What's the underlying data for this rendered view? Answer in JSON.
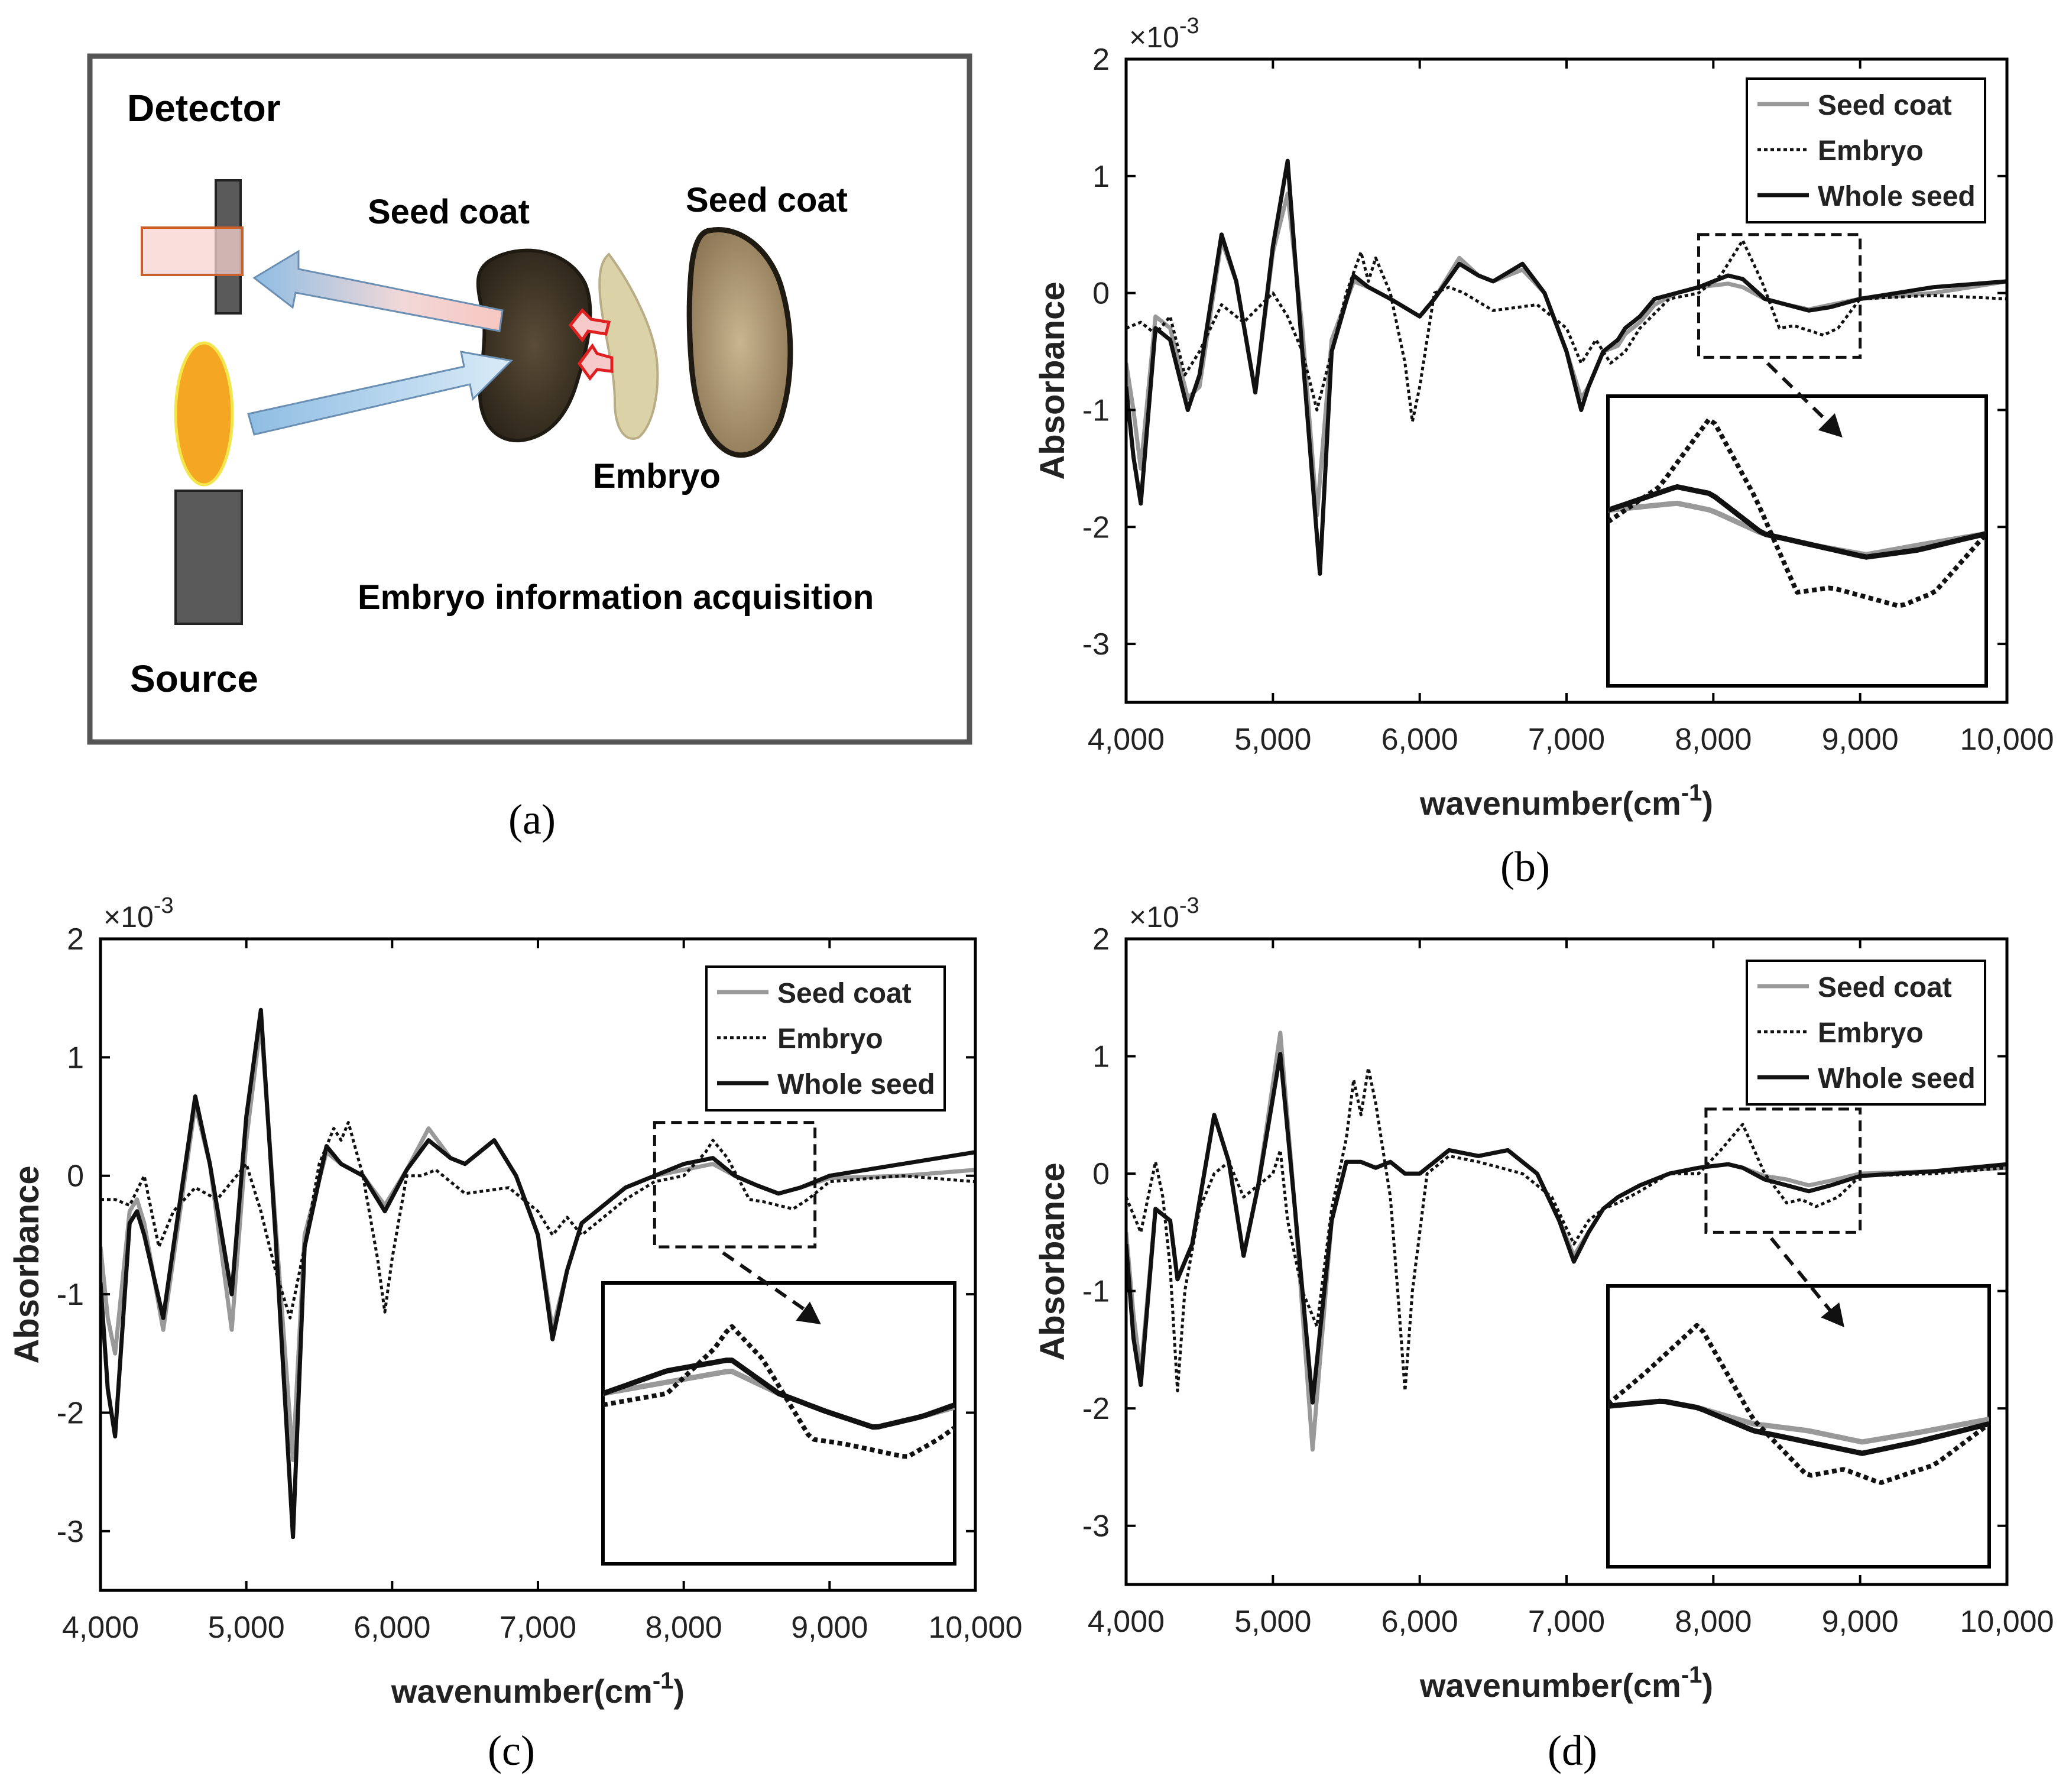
{
  "panel_a": {
    "caption": "(a)",
    "detector_label": "Detector",
    "source_label": "Source",
    "seed_coat_label_left": "Seed coat",
    "seed_coat_label_right": "Seed coat",
    "embryo_label": "Embryo",
    "acquisition_label": "Embryo information acquisition",
    "colors": {
      "frame": "#555555",
      "dark_seed": "#3d3426",
      "light_seed": "#b9a27e",
      "embryo": "#dcd2a8",
      "flame": "#f5a623",
      "lamp": "#5a5a5a",
      "arrow_blue": "#9cc6e6",
      "arrow_pink": "#f4c5c0",
      "red_arrow": "#e02020",
      "detector_box": "#f8d3cf"
    }
  },
  "style": {
    "seed_coat_color": "#999999",
    "embryo_color": "#111111",
    "whole_seed_color": "#111111",
    "axis_color": "#000000"
  },
  "chart_data": [
    {
      "id": "b",
      "caption": "(b)",
      "type": "line",
      "xlabel": "wavenumber(cm",
      "xlabel_sup": "-1",
      "xlabel_tail": ")",
      "ylabel": "Absorbance",
      "y_multiplier": "×10",
      "y_multiplier_exp": "-3",
      "xlim": [
        4000,
        10000
      ],
      "ylim": [
        -3.5,
        2
      ],
      "xticks": [
        4000,
        5000,
        6000,
        7000,
        8000,
        9000,
        10000
      ],
      "xtick_labels": [
        "4,000",
        "5,000",
        "6,000",
        "7,000",
        "8,000",
        "9,000",
        "10,000"
      ],
      "yticks": [
        -3,
        -2,
        -1,
        0,
        1,
        2
      ],
      "ytick_labels": [
        "-3",
        "-2",
        "-1",
        "0",
        "1",
        "2"
      ],
      "zoom_box": {
        "x": [
          7900,
          9000
        ],
        "y": [
          -0.55,
          0.5
        ]
      },
      "inset_y": [
        -3.3,
        1.1
      ],
      "series": [
        {
          "name": "Seed coat",
          "style": "gray",
          "x": [
            4000,
            4050,
            4100,
            4200,
            4300,
            4420,
            4500,
            4650,
            4750,
            4880,
            5000,
            5100,
            5200,
            5300,
            5400,
            5550,
            5650,
            5800,
            6000,
            6100,
            6270,
            6400,
            6500,
            6700,
            6850,
            7000,
            7100,
            7150,
            7250,
            7350,
            7400,
            7500,
            7600,
            7750,
            7900,
            8100,
            8200,
            8350,
            8500,
            8650,
            8800,
            9000,
            9500,
            10000
          ],
          "y": [
            -0.6,
            -1.0,
            -1.5,
            -0.2,
            -0.3,
            -0.9,
            -0.8,
            0.45,
            0.1,
            -0.85,
            0.35,
            0.85,
            -0.3,
            -1.9,
            -0.4,
            0.1,
            0.05,
            -0.05,
            -0.2,
            -0.05,
            0.3,
            0.15,
            0.1,
            0.2,
            0.0,
            -0.5,
            -0.9,
            -0.8,
            -0.5,
            -0.45,
            -0.35,
            -0.25,
            -0.1,
            0.0,
            0.05,
            0.08,
            0.05,
            -0.05,
            -0.1,
            -0.14,
            -0.1,
            -0.05,
            0.0,
            0.1
          ]
        },
        {
          "name": "Embryo",
          "style": "dotted",
          "x": [
            4000,
            4100,
            4200,
            4300,
            4400,
            4500,
            4650,
            4800,
            5000,
            5100,
            5200,
            5300,
            5400,
            5500,
            5600,
            5650,
            5700,
            5800,
            5900,
            5950,
            6000,
            6100,
            6200,
            6300,
            6500,
            6800,
            7000,
            7100,
            7200,
            7300,
            7400,
            7500,
            7700,
            7900,
            8050,
            8200,
            8330,
            8450,
            8550,
            8650,
            8750,
            8850,
            9000,
            9500,
            10000
          ],
          "y": [
            -0.3,
            -0.25,
            -0.35,
            -0.2,
            -0.7,
            -0.5,
            -0.1,
            -0.25,
            0.0,
            -0.2,
            -0.5,
            -1.0,
            -0.5,
            0.0,
            0.35,
            0.1,
            0.3,
            0.0,
            -0.6,
            -1.1,
            -0.8,
            0.0,
            0.05,
            0.0,
            -0.15,
            -0.1,
            -0.3,
            -0.6,
            -0.4,
            -0.6,
            -0.5,
            -0.3,
            -0.05,
            0.0,
            0.15,
            0.45,
            0.1,
            -0.3,
            -0.28,
            -0.32,
            -0.36,
            -0.3,
            -0.05,
            -0.02,
            -0.05
          ]
        },
        {
          "name": "Whole seed",
          "style": "solid",
          "x": [
            4000,
            4050,
            4100,
            4200,
            4300,
            4420,
            4500,
            4650,
            4750,
            4880,
            5000,
            5100,
            5200,
            5320,
            5400,
            5550,
            5650,
            5800,
            6000,
            6100,
            6270,
            6400,
            6500,
            6700,
            6850,
            7000,
            7100,
            7150,
            7250,
            7350,
            7400,
            7500,
            7600,
            7750,
            7900,
            8100,
            8200,
            8350,
            8500,
            8650,
            8800,
            9000,
            9500,
            10000
          ],
          "y": [
            -0.8,
            -1.4,
            -1.8,
            -0.3,
            -0.4,
            -1.0,
            -0.7,
            0.5,
            0.1,
            -0.85,
            0.4,
            1.13,
            -0.5,
            -2.4,
            -0.5,
            0.15,
            0.05,
            -0.05,
            -0.2,
            -0.05,
            0.25,
            0.15,
            0.1,
            0.25,
            0.0,
            -0.5,
            -1.0,
            -0.8,
            -0.5,
            -0.4,
            -0.3,
            -0.2,
            -0.05,
            0.0,
            0.05,
            0.15,
            0.12,
            -0.05,
            -0.1,
            -0.15,
            -0.12,
            -0.05,
            0.05,
            0.1
          ]
        }
      ]
    },
    {
      "id": "c",
      "caption": "(c)",
      "type": "line",
      "xlabel": "wavenumber(cm",
      "xlabel_sup": "-1",
      "xlabel_tail": ")",
      "ylabel": "Absorbance",
      "y_multiplier": "×10",
      "y_multiplier_exp": "-3",
      "xlim": [
        4000,
        10000
      ],
      "ylim": [
        -3.5,
        2
      ],
      "xticks": [
        4000,
        5000,
        6000,
        7000,
        8000,
        9000,
        10000
      ],
      "xtick_labels": [
        "4,000",
        "5,000",
        "6,000",
        "7,000",
        "8,000",
        "9,000",
        "10,000"
      ],
      "yticks": [
        -3,
        -2,
        -1,
        0,
        1,
        2
      ],
      "ytick_labels": [
        "-3",
        "-2",
        "-1",
        "0",
        "1",
        "2"
      ],
      "zoom_box": {
        "x": [
          7800,
          8900
        ],
        "y": [
          -0.6,
          0.45
        ]
      },
      "inset_y": [
        -3.3,
        1.1
      ],
      "series": [
        {
          "name": "Seed coat",
          "style": "gray",
          "x": [
            4000,
            4050,
            4100,
            4200,
            4250,
            4300,
            4430,
            4500,
            4650,
            4750,
            4900,
            5000,
            5100,
            5200,
            5320,
            5400,
            5550,
            5650,
            5800,
            5950,
            6100,
            6250,
            6400,
            6500,
            6700,
            6850,
            7000,
            7100,
            7200,
            7300,
            7400,
            7600,
            7800,
            8000,
            8200,
            8350,
            8500,
            8650,
            8800,
            9000,
            9500,
            10000
          ],
          "y": [
            -0.6,
            -1.2,
            -1.5,
            -0.3,
            -0.2,
            -0.4,
            -1.3,
            -0.7,
            0.6,
            0.1,
            -1.3,
            0.3,
            1.3,
            -0.4,
            -2.4,
            -0.5,
            0.2,
            0.1,
            0.0,
            -0.25,
            0.05,
            0.4,
            0.15,
            0.1,
            0.3,
            0.0,
            -0.5,
            -1.3,
            -0.8,
            -0.4,
            -0.3,
            -0.1,
            0.0,
            0.05,
            0.1,
            0.0,
            -0.08,
            -0.15,
            -0.1,
            -0.02,
            0.0,
            0.05
          ]
        },
        {
          "name": "Embryo",
          "style": "dotted",
          "x": [
            4000,
            4100,
            4200,
            4300,
            4400,
            4500,
            4650,
            4800,
            5000,
            5100,
            5200,
            5300,
            5400,
            5500,
            5600,
            5650,
            5700,
            5800,
            5900,
            5950,
            6000,
            6100,
            6200,
            6300,
            6500,
            6800,
            7000,
            7100,
            7200,
            7300,
            7400,
            7600,
            7800,
            8000,
            8150,
            8200,
            8300,
            8450,
            8550,
            8650,
            8750,
            8850,
            9000,
            9500,
            10000
          ],
          "y": [
            -0.2,
            -0.2,
            -0.25,
            0.0,
            -0.6,
            -0.3,
            -0.1,
            -0.2,
            0.1,
            -0.3,
            -0.8,
            -1.2,
            -0.6,
            0.1,
            0.4,
            0.3,
            0.45,
            0.0,
            -0.7,
            -1.15,
            -0.7,
            0.0,
            0.0,
            0.05,
            -0.15,
            -0.1,
            -0.3,
            -0.5,
            -0.35,
            -0.5,
            -0.4,
            -0.2,
            -0.05,
            0.0,
            0.2,
            0.3,
            0.15,
            -0.2,
            -0.22,
            -0.25,
            -0.28,
            -0.2,
            -0.05,
            0.0,
            -0.05
          ]
        },
        {
          "name": "Whole seed",
          "style": "solid",
          "x": [
            4000,
            4050,
            4100,
            4200,
            4250,
            4300,
            4430,
            4500,
            4650,
            4750,
            4900,
            5000,
            5100,
            5200,
            5320,
            5400,
            5550,
            5650,
            5800,
            5950,
            6100,
            6250,
            6400,
            6500,
            6700,
            6850,
            7000,
            7100,
            7200,
            7300,
            7400,
            7600,
            7800,
            8000,
            8200,
            8350,
            8500,
            8650,
            8800,
            9000,
            9500,
            10000
          ],
          "y": [
            -0.9,
            -1.8,
            -2.2,
            -0.4,
            -0.3,
            -0.5,
            -1.2,
            -0.6,
            0.67,
            0.1,
            -1.0,
            0.5,
            1.4,
            -0.5,
            -3.05,
            -0.6,
            0.25,
            0.1,
            0.0,
            -0.3,
            0.05,
            0.3,
            0.15,
            0.1,
            0.3,
            0.0,
            -0.5,
            -1.38,
            -0.8,
            -0.4,
            -0.3,
            -0.1,
            0.0,
            0.1,
            0.15,
            0.0,
            -0.08,
            -0.15,
            -0.1,
            0.0,
            0.1,
            0.2
          ]
        }
      ]
    },
    {
      "id": "d",
      "caption": "(d)",
      "type": "line",
      "xlabel": "wavenumber(cm",
      "xlabel_sup": "-1",
      "xlabel_tail": ")",
      "ylabel": "Absorbance",
      "y_multiplier": "×10",
      "y_multiplier_exp": "-3",
      "xlim": [
        4000,
        10000
      ],
      "ylim": [
        -3.5,
        2
      ],
      "xticks": [
        4000,
        5000,
        6000,
        7000,
        8000,
        9000,
        10000
      ],
      "xtick_labels": [
        "4,000",
        "5,000",
        "6,000",
        "7,000",
        "8,000",
        "9,000",
        "10,000"
      ],
      "yticks": [
        -3,
        -2,
        -1,
        0,
        1,
        2
      ],
      "ytick_labels": [
        "-3",
        "-2",
        "-1",
        "0",
        "1",
        "2"
      ],
      "zoom_box": {
        "x": [
          7950,
          9000
        ],
        "y": [
          -0.5,
          0.55
        ]
      },
      "inset_y": [
        -3.3,
        1.1
      ],
      "series": [
        {
          "name": "Seed coat",
          "style": "gray",
          "x": [
            4000,
            4050,
            4100,
            4200,
            4300,
            4350,
            4450,
            4600,
            4700,
            4800,
            4900,
            5050,
            5150,
            5270,
            5400,
            5500,
            5600,
            5700,
            5800,
            5900,
            6000,
            6200,
            6400,
            6600,
            6800,
            6950,
            7050,
            7150,
            7250,
            7350,
            7500,
            7700,
            7900,
            8100,
            8200,
            8350,
            8500,
            8650,
            8800,
            9000,
            9500,
            10000
          ],
          "y": [
            -0.5,
            -1.2,
            -1.7,
            -0.3,
            -0.4,
            -0.9,
            -0.6,
            0.5,
            0.1,
            -0.7,
            -0.1,
            1.2,
            -0.3,
            -2.35,
            -0.4,
            0.1,
            0.1,
            0.05,
            0.1,
            0.0,
            0.0,
            0.2,
            0.15,
            0.2,
            0.0,
            -0.4,
            -0.7,
            -0.5,
            -0.3,
            -0.2,
            -0.1,
            0.0,
            0.05,
            0.08,
            0.05,
            -0.02,
            -0.05,
            -0.1,
            -0.06,
            0.0,
            0.02,
            0.05
          ]
        },
        {
          "name": "Embryo",
          "style": "dotted",
          "x": [
            4000,
            4100,
            4200,
            4250,
            4300,
            4350,
            4400,
            4500,
            4600,
            4700,
            4800,
            5000,
            5050,
            5100,
            5200,
            5300,
            5400,
            5500,
            5550,
            5600,
            5650,
            5700,
            5800,
            5850,
            5900,
            5950,
            6050,
            6200,
            6400,
            6700,
            6900,
            7050,
            7150,
            7250,
            7350,
            7500,
            7700,
            7900,
            8050,
            8200,
            8350,
            8500,
            8600,
            8700,
            8850,
            9000,
            9500,
            10000
          ],
          "y": [
            -0.2,
            -0.5,
            0.1,
            -0.2,
            -0.8,
            -1.85,
            -1.0,
            -0.3,
            0.0,
            0.1,
            -0.2,
            0.0,
            0.2,
            -0.4,
            -1.0,
            -1.3,
            -0.3,
            0.3,
            0.8,
            0.5,
            0.9,
            0.6,
            -0.2,
            -1.0,
            -1.85,
            -1.0,
            0.0,
            0.15,
            0.1,
            0.0,
            -0.2,
            -0.6,
            -0.4,
            -0.3,
            -0.25,
            -0.15,
            0.0,
            0.0,
            0.2,
            0.42,
            0.0,
            -0.25,
            -0.22,
            -0.28,
            -0.2,
            -0.02,
            0.0,
            0.05
          ]
        },
        {
          "name": "Whole seed",
          "style": "solid",
          "x": [
            4000,
            4050,
            4100,
            4200,
            4300,
            4350,
            4450,
            4600,
            4700,
            4800,
            4900,
            5050,
            5150,
            5270,
            5400,
            5500,
            5600,
            5700,
            5800,
            5900,
            6000,
            6200,
            6400,
            6600,
            6800,
            6950,
            7050,
            7150,
            7250,
            7350,
            7500,
            7700,
            7900,
            8100,
            8200,
            8350,
            8500,
            8650,
            8800,
            9000,
            9500,
            10000
          ],
          "y": [
            -0.6,
            -1.4,
            -1.8,
            -0.3,
            -0.4,
            -0.9,
            -0.6,
            0.5,
            0.1,
            -0.7,
            -0.1,
            1.02,
            -0.3,
            -1.95,
            -0.4,
            0.1,
            0.1,
            0.05,
            0.1,
            0.0,
            0.0,
            0.2,
            0.15,
            0.2,
            0.0,
            -0.4,
            -0.75,
            -0.5,
            -0.3,
            -0.2,
            -0.1,
            0.0,
            0.05,
            0.08,
            0.05,
            -0.05,
            -0.1,
            -0.15,
            -0.1,
            -0.02,
            0.02,
            0.08
          ]
        }
      ]
    }
  ]
}
